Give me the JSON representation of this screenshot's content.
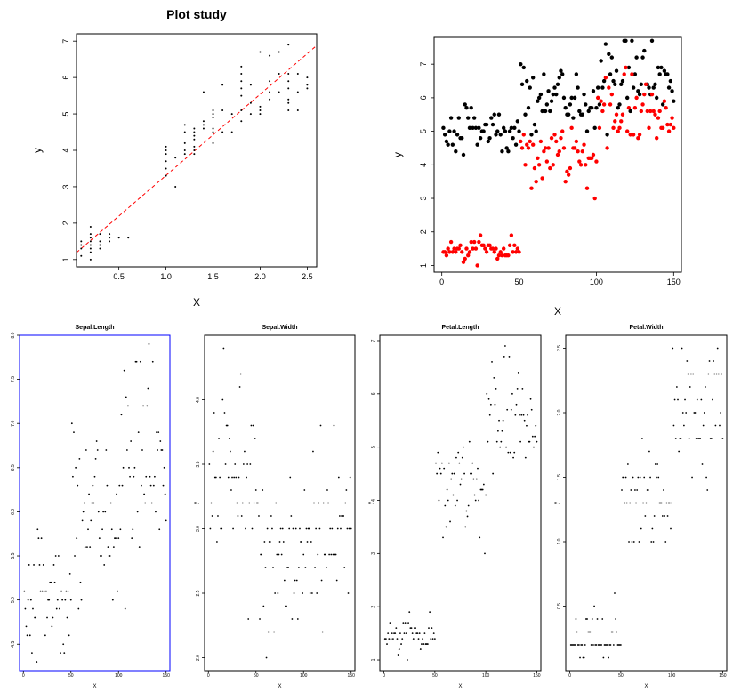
{
  "page_title": "Plot study",
  "colors": {
    "ink": "#000000",
    "species_red": "#ff0000",
    "regression_line": "#ff0000",
    "selection_box": "#0000ff",
    "panel_frame": "#000000"
  },
  "chart_data": [
    {
      "id": "plot1",
      "type": "scatter",
      "title": "Plot study",
      "xlabel": "X",
      "ylabel": "y",
      "xlim": [
        0.05,
        2.6
      ],
      "ylim": [
        0.8,
        7.2
      ],
      "xticks": [
        0.5,
        1.0,
        1.5,
        2.0,
        2.5
      ],
      "xtick_labels": [
        "0.5",
        "1.0",
        "1.5",
        "2.0",
        "2.5"
      ],
      "yticks": [
        1,
        2,
        3,
        4,
        5,
        6,
        7
      ],
      "ytick_labels": [
        "1",
        "2",
        "3",
        "4",
        "5",
        "6",
        "7"
      ],
      "regression": {
        "style": "dashed",
        "intercept": 1.08,
        "slope": 2.23
      },
      "x": [
        0.2,
        0.2,
        0.2,
        0.2,
        0.2,
        0.2,
        0.2,
        0.1,
        0.1,
        0.1,
        0.1,
        0.2,
        0.3,
        0.3,
        0.3,
        0.3,
        0.4,
        0.4,
        0.4,
        0.5,
        0.6,
        1.0,
        1.0,
        1.0,
        1.0,
        1.0,
        1.1,
        1.1,
        1.2,
        1.2,
        1.2,
        1.2,
        1.3,
        1.3,
        1.3,
        1.3,
        1.3,
        1.3,
        1.4,
        1.4,
        1.4,
        1.4,
        1.5,
        1.5,
        1.5,
        1.5,
        1.5,
        1.6,
        1.6,
        1.7,
        1.8,
        1.8,
        1.8,
        1.8,
        1.8,
        1.8,
        1.9,
        1.9,
        2.0,
        2.0,
        2.0,
        2.1,
        2.1,
        2.1,
        2.2,
        2.2,
        2.3,
        2.3,
        2.3,
        2.3,
        2.3,
        2.3,
        2.4,
        2.4,
        2.5,
        2.5,
        2.5,
        1.0,
        1.3,
        1.5,
        1.9,
        2.0,
        2.2,
        2.4,
        1.2,
        1.6,
        1.7,
        1.8,
        2.1,
        2.3
      ],
      "y": [
        1.4,
        1.3,
        1.5,
        1.6,
        1.7,
        1.9,
        1.2,
        1.5,
        1.4,
        1.3,
        1.1,
        1.0,
        1.4,
        1.3,
        1.5,
        1.7,
        1.5,
        1.6,
        1.7,
        1.6,
        1.6,
        3.5,
        3.7,
        3.9,
        4.1,
        4.0,
        3.0,
        3.8,
        4.5,
        4.0,
        4.2,
        4.7,
        4.0,
        4.1,
        4.4,
        4.5,
        4.6,
        3.9,
        4.6,
        4.7,
        4.8,
        5.6,
        4.2,
        4.5,
        4.9,
        5.1,
        5.0,
        4.5,
        5.1,
        5.0,
        4.8,
        5.1,
        5.5,
        5.9,
        6.1,
        6.3,
        5.0,
        5.3,
        5.0,
        5.1,
        5.2,
        5.4,
        5.6,
        6.6,
        5.6,
        6.1,
        5.1,
        5.4,
        6.9,
        5.7,
        5.9,
        6.1,
        5.6,
        6.1,
        5.7,
        6.0,
        5.8,
        3.3,
        4.3,
        4.6,
        5.8,
        6.7,
        6.7,
        5.1,
        3.9,
        5.8,
        4.5,
        5.7,
        5.9,
        5.3
      ]
    },
    {
      "id": "plot2",
      "type": "scatter",
      "xlabel": "X",
      "ylabel": "y",
      "xlim": [
        -5,
        155
      ],
      "ylim": [
        0.8,
        7.8
      ],
      "xticks": [
        0,
        50,
        100,
        150
      ],
      "xtick_labels": [
        "0",
        "50",
        "100",
        "150"
      ],
      "yticks": [
        1,
        2,
        3,
        4,
        5,
        6,
        7
      ],
      "ytick_labels": [
        "1",
        "2",
        "3",
        "4",
        "5",
        "6",
        "7"
      ],
      "series": [
        {
          "name": "Sepal.Length",
          "color": "black",
          "values": [
            5.1,
            4.9,
            4.7,
            4.6,
            5.0,
            5.4,
            4.6,
            5.0,
            4.4,
            4.9,
            5.4,
            4.8,
            4.8,
            4.3,
            5.8,
            5.7,
            5.4,
            5.1,
            5.7,
            5.1,
            5.4,
            5.1,
            4.6,
            5.1,
            4.8,
            5.0,
            5.0,
            5.2,
            5.2,
            4.7,
            4.8,
            5.4,
            5.2,
            5.5,
            4.9,
            5.0,
            5.5,
            4.9,
            4.4,
            5.1,
            5.0,
            4.5,
            4.4,
            5.0,
            5.1,
            4.8,
            5.1,
            4.6,
            5.3,
            5.0,
            7.0,
            6.4,
            6.9,
            5.5,
            6.5,
            5.7,
            6.3,
            4.9,
            6.6,
            5.2,
            5.0,
            5.9,
            6.0,
            6.1,
            5.6,
            6.7,
            5.6,
            5.8,
            6.2,
            5.6,
            5.9,
            6.1,
            6.3,
            6.1,
            6.4,
            6.6,
            6.8,
            6.7,
            6.0,
            5.7,
            5.5,
            5.5,
            5.8,
            6.0,
            5.4,
            6.0,
            6.7,
            6.3,
            5.6,
            5.5,
            5.5,
            6.1,
            5.8,
            5.0,
            5.6,
            5.7,
            5.7,
            6.2,
            5.1,
            5.7,
            6.3,
            5.8,
            7.1,
            6.3,
            6.5,
            7.6,
            4.9,
            7.3,
            6.7,
            7.2,
            6.5,
            6.4,
            6.8,
            5.7,
            5.8,
            6.4,
            6.5,
            7.7,
            7.7,
            6.0,
            6.9,
            5.6,
            7.7,
            6.3,
            6.7,
            7.2,
            6.2,
            6.1,
            6.4,
            7.2,
            7.4,
            7.9,
            6.4,
            6.3,
            6.1,
            7.7,
            6.3,
            6.4,
            6.0,
            6.9,
            6.7,
            6.9,
            5.8,
            6.8,
            6.7,
            6.7,
            6.3,
            6.5,
            6.2,
            5.9
          ]
        },
        {
          "name": "Petal.Length",
          "color": "red",
          "values": [
            1.4,
            1.4,
            1.3,
            1.5,
            1.4,
            1.7,
            1.4,
            1.5,
            1.4,
            1.5,
            1.5,
            1.6,
            1.4,
            1.1,
            1.2,
            1.5,
            1.3,
            1.4,
            1.7,
            1.5,
            1.7,
            1.5,
            1.0,
            1.7,
            1.9,
            1.6,
            1.6,
            1.5,
            1.4,
            1.6,
            1.6,
            1.5,
            1.5,
            1.4,
            1.5,
            1.2,
            1.3,
            1.4,
            1.3,
            1.5,
            1.3,
            1.3,
            1.3,
            1.6,
            1.9,
            1.4,
            1.6,
            1.4,
            1.5,
            1.4,
            4.7,
            4.5,
            4.9,
            4.0,
            4.6,
            4.5,
            4.7,
            3.3,
            4.6,
            3.9,
            3.5,
            4.2,
            4.0,
            4.7,
            3.6,
            4.4,
            4.5,
            4.1,
            4.5,
            3.9,
            4.8,
            4.0,
            4.9,
            4.7,
            4.3,
            4.4,
            4.8,
            5.0,
            4.5,
            3.5,
            3.8,
            3.7,
            3.9,
            5.1,
            4.5,
            4.5,
            4.7,
            4.4,
            4.1,
            4.0,
            4.4,
            4.6,
            4.0,
            3.3,
            4.2,
            4.2,
            4.2,
            4.3,
            3.0,
            4.1,
            6.0,
            5.1,
            5.9,
            5.6,
            5.8,
            6.6,
            4.5,
            6.3,
            5.8,
            6.1,
            5.1,
            5.3,
            5.5,
            5.0,
            5.1,
            5.3,
            5.5,
            6.7,
            6.9,
            5.0,
            5.7,
            4.9,
            6.7,
            4.9,
            5.7,
            6.0,
            4.8,
            4.9,
            5.6,
            5.8,
            6.1,
            6.4,
            5.6,
            5.1,
            5.6,
            6.1,
            5.6,
            5.5,
            4.8,
            5.4,
            5.6,
            5.1,
            5.1,
            5.9,
            5.7,
            5.2,
            5.0,
            5.2,
            5.4,
            5.1
          ]
        }
      ]
    },
    {
      "id": "plot3",
      "type": "scatter",
      "title": "Sepal.Length",
      "xlabel": "X",
      "ylabel": "",
      "xlim": [
        -4,
        154
      ],
      "ylim": [
        4.2,
        8.0
      ],
      "xticks": [
        0,
        50,
        100,
        150
      ],
      "xtick_labels": [
        "0",
        "50",
        "100",
        "150"
      ],
      "yticks": [
        4.5,
        5.0,
        5.5,
        6.0,
        6.5,
        7.0,
        7.5,
        8.0
      ],
      "ytick_labels": [
        "4.5",
        "5.0",
        "5.5",
        "6.0",
        "6.5",
        "7.0",
        "7.5",
        "8.0"
      ],
      "values_ref": "Sepal.Length",
      "frame": "selected"
    },
    {
      "id": "plot4",
      "type": "scatter",
      "title": "Sepal.Width",
      "xlabel": "X",
      "ylabel": "y",
      "xlim": [
        -4,
        154
      ],
      "ylim": [
        1.9,
        4.5
      ],
      "xticks": [
        0,
        50,
        100,
        150
      ],
      "xtick_labels": [
        "0",
        "50",
        "100",
        "150"
      ],
      "yticks": [
        2.0,
        2.5,
        3.0,
        3.5,
        4.0
      ],
      "ytick_labels": [
        "2.0",
        "2.5",
        "3.0",
        "3.5",
        "4.0"
      ],
      "values": [
        3.5,
        3.0,
        3.2,
        3.1,
        3.6,
        3.9,
        3.4,
        3.4,
        2.9,
        3.1,
        3.7,
        3.4,
        3.0,
        3.0,
        4.0,
        4.4,
        3.9,
        3.5,
        3.8,
        3.8,
        3.4,
        3.7,
        3.6,
        3.3,
        3.4,
        3.0,
        3.4,
        3.5,
        3.4,
        3.2,
        3.1,
        3.4,
        4.1,
        4.2,
        3.1,
        3.2,
        3.5,
        3.6,
        3.0,
        3.4,
        3.5,
        2.3,
        3.2,
        3.5,
        3.8,
        3.0,
        3.8,
        3.2,
        3.7,
        3.3,
        3.2,
        3.2,
        3.1,
        2.3,
        2.8,
        2.8,
        3.3,
        2.4,
        2.9,
        2.7,
        2.0,
        3.0,
        2.2,
        2.9,
        2.9,
        3.1,
        3.0,
        2.7,
        2.2,
        2.5,
        3.2,
        2.8,
        2.5,
        2.8,
        2.9,
        3.0,
        2.8,
        3.0,
        2.9,
        2.6,
        2.4,
        2.4,
        2.7,
        2.7,
        3.0,
        3.4,
        3.1,
        2.3,
        3.0,
        2.5,
        2.6,
        3.0,
        2.6,
        2.3,
        2.7,
        3.0,
        2.9,
        2.9,
        2.5,
        2.8,
        3.3,
        2.7,
        3.0,
        2.9,
        3.0,
        3.0,
        2.5,
        2.9,
        2.5,
        3.6,
        3.2,
        2.7,
        3.0,
        2.5,
        2.8,
        3.2,
        3.0,
        3.8,
        2.6,
        2.2,
        3.2,
        2.8,
        2.8,
        2.7,
        3.3,
        3.2,
        2.8,
        3.0,
        2.8,
        3.0,
        2.8,
        3.8,
        2.8,
        2.8,
        2.6,
        3.0,
        3.4,
        3.1,
        3.0,
        3.1,
        3.1,
        3.1,
        2.7,
        3.2,
        3.3,
        3.0,
        2.5,
        3.0,
        3.4,
        3.0
      ]
    },
    {
      "id": "plot5",
      "type": "scatter",
      "title": "Petal.Length",
      "xlabel": "X",
      "ylabel": "y",
      "xlim": [
        -4,
        154
      ],
      "ylim": [
        0.8,
        7.1
      ],
      "xticks": [
        0,
        50,
        100,
        150
      ],
      "xtick_labels": [
        "0",
        "50",
        "100",
        "150"
      ],
      "yticks": [
        1,
        2,
        3,
        4,
        5,
        6,
        7
      ],
      "ytick_labels": [
        "1",
        "2",
        "3",
        "4",
        "5",
        "6",
        "7"
      ],
      "values_ref": "Petal.Length"
    },
    {
      "id": "plot6",
      "type": "scatter",
      "title": "Petal.Width",
      "xlabel": "X",
      "ylabel": "y",
      "xlim": [
        -4,
        154
      ],
      "ylim": [
        0.0,
        2.6
      ],
      "xticks": [
        0,
        50,
        100,
        150
      ],
      "xtick_labels": [
        "0",
        "50",
        "100",
        "150"
      ],
      "yticks": [
        0.5,
        1.0,
        1.5,
        2.0,
        2.5
      ],
      "ytick_labels": [
        "0.5",
        "1.0",
        "1.5",
        "2.0",
        "2.5"
      ],
      "values": [
        0.2,
        0.2,
        0.2,
        0.2,
        0.2,
        0.4,
        0.3,
        0.2,
        0.2,
        0.1,
        0.2,
        0.2,
        0.1,
        0.1,
        0.2,
        0.4,
        0.4,
        0.3,
        0.3,
        0.3,
        0.2,
        0.4,
        0.2,
        0.5,
        0.2,
        0.2,
        0.4,
        0.2,
        0.2,
        0.2,
        0.2,
        0.4,
        0.1,
        0.2,
        0.2,
        0.2,
        0.2,
        0.1,
        0.2,
        0.2,
        0.3,
        0.3,
        0.2,
        0.6,
        0.4,
        0.3,
        0.2,
        0.2,
        0.2,
        0.2,
        1.4,
        1.5,
        1.5,
        1.3,
        1.5,
        1.3,
        1.6,
        1.0,
        1.3,
        1.4,
        1.0,
        1.5,
        1.0,
        1.4,
        1.3,
        1.4,
        1.5,
        1.0,
        1.5,
        1.1,
        1.8,
        1.3,
        1.5,
        1.2,
        1.3,
        1.4,
        1.4,
        1.7,
        1.5,
        1.0,
        1.1,
        1.0,
        1.2,
        1.6,
        1.5,
        1.6,
        1.5,
        1.3,
        1.3,
        1.3,
        1.2,
        1.4,
        1.2,
        1.0,
        1.3,
        1.2,
        1.3,
        1.3,
        1.1,
        1.3,
        2.5,
        1.9,
        2.1,
        1.8,
        2.2,
        2.1,
        1.7,
        1.8,
        1.8,
        2.5,
        2.0,
        1.9,
        2.1,
        2.0,
        2.4,
        2.3,
        1.8,
        2.2,
        2.3,
        1.5,
        2.3,
        2.0,
        2.0,
        1.8,
        2.1,
        1.8,
        1.8,
        1.8,
        2.1,
        1.6,
        1.9,
        2.0,
        2.2,
        1.5,
        1.4,
        2.3,
        2.4,
        1.8,
        1.8,
        2.1,
        2.4,
        2.3,
        1.9,
        2.3,
        2.5,
        2.3,
        1.9,
        2.0,
        2.3,
        1.8
      ]
    }
  ]
}
